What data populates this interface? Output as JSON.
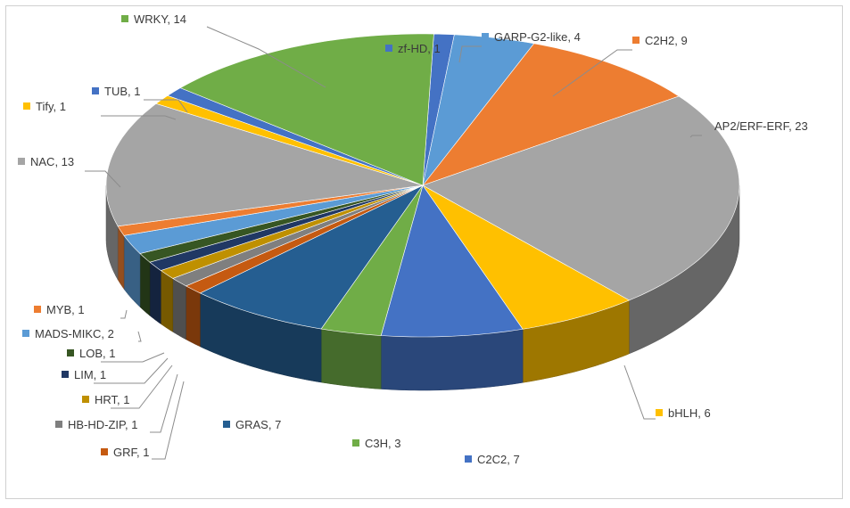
{
  "chart_data": {
    "type": "pie",
    "title": "",
    "legend": "none",
    "slices": [
      {
        "label": "zf-HD, 1",
        "name": "zf-HD",
        "value": 1,
        "color": "#4472c4"
      },
      {
        "label": "GARP-G2-like, 4",
        "name": "GARP-G2-like",
        "value": 4,
        "color": "#5b9bd5"
      },
      {
        "label": "C2H2, 9",
        "name": "C2H2",
        "value": 9,
        "color": "#ed7d31"
      },
      {
        "label": "AP2/ERF-ERF, 23",
        "name": "AP2/ERF-ERF",
        "value": 23,
        "color": "#a5a5a5"
      },
      {
        "label": "bHLH, 6",
        "name": "bHLH",
        "value": 6,
        "color": "#ffc000"
      },
      {
        "label": "C2C2, 7",
        "name": "C2C2",
        "value": 7,
        "color": "#4472c4"
      },
      {
        "label": "C3H, 3",
        "name": "C3H",
        "value": 3,
        "color": "#70ad47"
      },
      {
        "label": "GRAS, 7",
        "name": "GRAS",
        "value": 7,
        "color": "#255e91"
      },
      {
        "label": "GRF, 1",
        "name": "GRF",
        "value": 1,
        "color": "#c55a11"
      },
      {
        "label": "HB-HD-ZIP, 1",
        "name": "HB-HD-ZIP",
        "value": 1,
        "color": "#7f7f7f"
      },
      {
        "label": "HRT, 1",
        "name": "HRT",
        "value": 1,
        "color": "#bf9000"
      },
      {
        "label": "LIM, 1",
        "name": "LIM",
        "value": 1,
        "color": "#203864"
      },
      {
        "label": "LOB, 1",
        "name": "LOB",
        "value": 1,
        "color": "#375623"
      },
      {
        "label": "MADS-MIKC, 2",
        "name": "MADS-MIKC",
        "value": 2,
        "color": "#5b9bd5"
      },
      {
        "label": "MYB, 1",
        "name": "MYB",
        "value": 1,
        "color": "#ed7d31"
      },
      {
        "label": "NAC, 13",
        "name": "NAC",
        "value": 13,
        "color": "#a5a5a5"
      },
      {
        "label": "Tify, 1",
        "name": "Tify",
        "value": 1,
        "color": "#ffc000"
      },
      {
        "label": "TUB, 1",
        "name": "TUB",
        "value": 1,
        "color": "#4472c4"
      },
      {
        "label": "WRKY, 14",
        "name": "WRKY",
        "value": 14,
        "color": "#70ad47"
      }
    ]
  }
}
